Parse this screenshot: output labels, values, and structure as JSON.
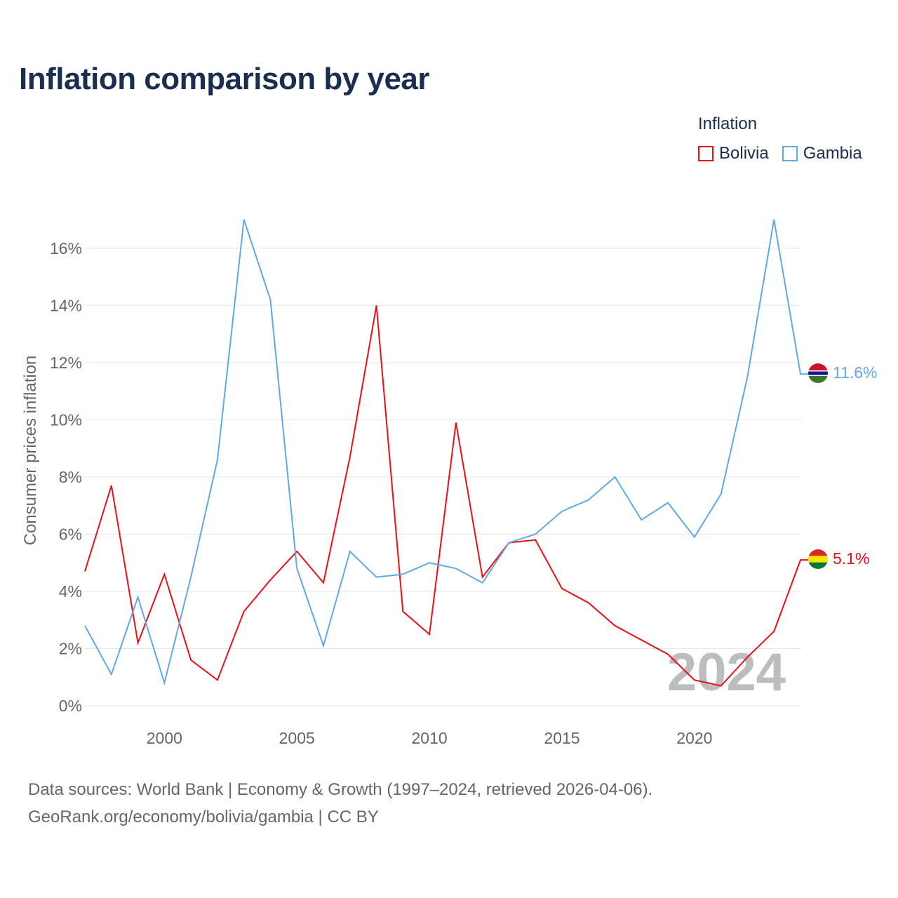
{
  "title": "Inflation comparison by year",
  "legend": {
    "title": "Inflation",
    "items": [
      {
        "label": "Bolivia",
        "color": "#e8101a"
      },
      {
        "label": "Gambia",
        "color": "#62a8e5"
      }
    ]
  },
  "footer": {
    "line1": "Data sources: World Bank | Economy & Growth (1997–2024, retrieved 2026-04-06).",
    "line2": "GeoRank.org/economy/bolivia/gambia | CC BY"
  },
  "chart_data": {
    "type": "line",
    "title": "Inflation comparison by year",
    "xlabel": "",
    "ylabel": "Consumer prices inflation",
    "xlim": [
      1997,
      2024
    ],
    "ylim": [
      0,
      17
    ],
    "x_ticks": [
      2000,
      2005,
      2010,
      2015,
      2020
    ],
    "y_ticks": [
      0,
      2,
      4,
      6,
      8,
      10,
      12,
      14,
      16
    ],
    "y_tick_labels": [
      "0%",
      "2%",
      "4%",
      "6%",
      "8%",
      "10%",
      "12%",
      "14%",
      "16%"
    ],
    "grid": true,
    "watermark": "2024",
    "x": [
      1997,
      1998,
      1999,
      2000,
      2001,
      2002,
      2003,
      2004,
      2005,
      2006,
      2007,
      2008,
      2009,
      2010,
      2011,
      2012,
      2013,
      2014,
      2015,
      2016,
      2017,
      2018,
      2019,
      2020,
      2021,
      2022,
      2023,
      2024
    ],
    "series": [
      {
        "name": "Bolivia",
        "color": "#e8101a",
        "end_label": "5.1%",
        "values": [
          4.7,
          7.7,
          2.2,
          4.6,
          1.6,
          0.9,
          3.3,
          4.4,
          5.4,
          4.3,
          8.7,
          14.0,
          3.3,
          2.5,
          9.9,
          4.5,
          5.7,
          5.8,
          4.1,
          3.6,
          2.8,
          2.3,
          1.8,
          0.9,
          0.7,
          1.7,
          2.6,
          5.1
        ]
      },
      {
        "name": "Gambia",
        "color": "#62a8e5",
        "end_label": "11.6%",
        "values": [
          2.8,
          1.1,
          3.8,
          0.8,
          4.5,
          8.6,
          17.0,
          14.2,
          4.8,
          2.1,
          5.4,
          4.5,
          4.6,
          5.0,
          4.8,
          4.3,
          5.7,
          6.0,
          6.8,
          7.2,
          8.0,
          6.5,
          7.1,
          5.9,
          7.4,
          11.5,
          17.0,
          11.6
        ]
      }
    ]
  }
}
